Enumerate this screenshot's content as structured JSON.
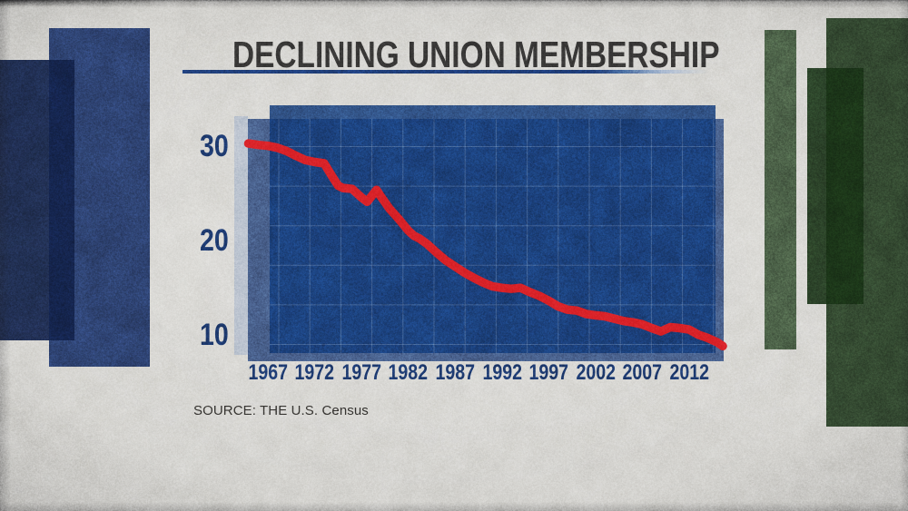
{
  "header": {
    "title": "DECLINING UNION MEMBERSHIP"
  },
  "chart_data": {
    "type": "line",
    "title": "DECLINING UNION MEMBERSHIP",
    "source": "SOURCE: THE U.S. Census",
    "xlabel": "",
    "ylabel": "",
    "x_ticks": [
      "1967",
      "1972",
      "1977",
      "1982",
      "1987",
      "1992",
      "1997",
      "2002",
      "2007",
      "2012"
    ],
    "x_tick_years": [
      1967,
      1972,
      1977,
      1982,
      1987,
      1992,
      1997,
      2002,
      2007,
      2012
    ],
    "y_ticks": [
      "30",
      "20",
      "10"
    ],
    "y_tick_values": [
      30,
      20,
      10
    ],
    "xlim": [
      1964.85,
      2015.7
    ],
    "ylim": [
      7.2,
      32.8
    ],
    "grid": true,
    "legend_position": "none",
    "series": [
      {
        "name": "UNION MEMBERSHIP",
        "points": [
          [
            1964.9,
            30.2
          ],
          [
            1966,
            30.05
          ],
          [
            1967,
            29.95
          ],
          [
            1968,
            29.75
          ],
          [
            1969,
            29.4
          ],
          [
            1970,
            28.9
          ],
          [
            1971,
            28.45
          ],
          [
            1972,
            28.25
          ],
          [
            1973,
            28.1
          ],
          [
            1974,
            26.5
          ],
          [
            1974.5,
            25.75
          ],
          [
            1975,
            25.5
          ],
          [
            1976,
            25.4
          ],
          [
            1977,
            24.5
          ],
          [
            1977.6,
            24.05
          ],
          [
            1978.6,
            25.3
          ],
          [
            1979,
            24.7
          ],
          [
            1980,
            23.3
          ],
          [
            1981,
            22.2
          ],
          [
            1982,
            21.0
          ],
          [
            1982.6,
            20.45
          ],
          [
            1983.2,
            20.15
          ],
          [
            1984,
            19.6
          ],
          [
            1985,
            18.7
          ],
          [
            1986,
            17.85
          ],
          [
            1987,
            17.2
          ],
          [
            1988,
            16.55
          ],
          [
            1989,
            16.0
          ],
          [
            1990,
            15.5
          ],
          [
            1991,
            15.1
          ],
          [
            1992,
            14.95
          ],
          [
            1993,
            14.85
          ],
          [
            1994,
            14.95
          ],
          [
            1995,
            14.5
          ],
          [
            1996,
            14.1
          ],
          [
            1997,
            13.6
          ],
          [
            1998,
            13.0
          ],
          [
            1999,
            12.65
          ],
          [
            2000,
            12.55
          ],
          [
            2001,
            12.2
          ],
          [
            2002,
            12.05
          ],
          [
            2003,
            11.95
          ],
          [
            2004,
            11.7
          ],
          [
            2005,
            11.45
          ],
          [
            2006,
            11.3
          ],
          [
            2007,
            11.1
          ],
          [
            2008,
            10.7
          ],
          [
            2009,
            10.35
          ],
          [
            2010,
            10.8
          ],
          [
            2011,
            10.7
          ],
          [
            2012,
            10.55
          ],
          [
            2013,
            10.0
          ],
          [
            2014,
            9.65
          ],
          [
            2015,
            9.2
          ],
          [
            2015.6,
            8.8
          ]
        ]
      }
    ]
  },
  "colors": {
    "paper": "#d7d6d2",
    "title_text": "#383736",
    "underline_navy": "#1e3d7a",
    "label_navy": "#1d3a70",
    "source_text": "#33312e",
    "line_red": "#d92228",
    "grid_line": "#cddef2",
    "panel_front_blue": "#123a7a",
    "panel_back_blue": "#4a628e",
    "panel_highlight": "#bcc4d0",
    "deco_navy_large": "#2e4373",
    "deco_navy_dark": "#12224a",
    "deco_green_band": "#4d6349",
    "deco_green_large": "#344a31",
    "deco_green_dark": "#183316"
  }
}
